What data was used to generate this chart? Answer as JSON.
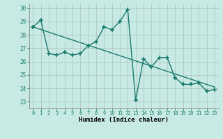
{
  "x": [
    0,
    1,
    2,
    3,
    4,
    5,
    6,
    7,
    8,
    9,
    10,
    11,
    12,
    13,
    14,
    15,
    16,
    17,
    18,
    19,
    20,
    21,
    22,
    23
  ],
  "y": [
    28.6,
    29.1,
    26.6,
    26.5,
    26.7,
    26.5,
    26.6,
    27.2,
    27.5,
    28.6,
    28.4,
    29.0,
    29.9,
    23.1,
    26.2,
    25.6,
    26.3,
    26.3,
    24.8,
    24.3,
    24.3,
    24.4,
    23.8,
    23.9
  ],
  "trend_x": [
    0,
    23
  ],
  "trend_y": [
    28.6,
    24.1
  ],
  "line_color": "#1a7a6e",
  "bg_color": "#c8eae4",
  "grid_color": "#b0c8c0",
  "xlabel": "Humidex (Indice chaleur)",
  "ylim": [
    22.5,
    30.3
  ],
  "xlim": [
    -0.5,
    23.5
  ],
  "yticks": [
    23,
    24,
    25,
    26,
    27,
    28,
    29,
    30
  ],
  "xticks": [
    0,
    1,
    2,
    3,
    4,
    5,
    6,
    7,
    8,
    9,
    10,
    11,
    12,
    13,
    14,
    15,
    16,
    17,
    18,
    19,
    20,
    21,
    22,
    23
  ],
  "xtick_labels": [
    "0",
    "1",
    "2",
    "3",
    "4",
    "5",
    "6",
    "7",
    "8",
    "9",
    "10",
    "11",
    "12",
    "13",
    "14",
    "15",
    "16",
    "17",
    "18",
    "19",
    "20",
    "21",
    "22",
    "23"
  ],
  "marker": "+",
  "markersize": 4,
  "linewidth": 1.0
}
